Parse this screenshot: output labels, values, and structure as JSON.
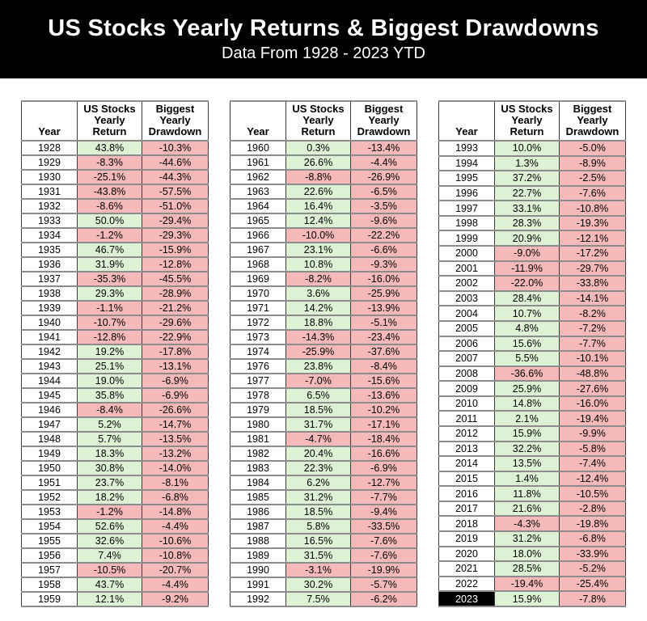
{
  "meta": {
    "title": "US Stocks Yearly Returns & Biggest Drawdowns",
    "subtitle": "Data From 1928 - 2023 YTD"
  },
  "colors": {
    "banner_bg": "#000000",
    "banner_text": "#ffffff",
    "positive_bg": "#ddf2d4",
    "negative_bg": "#f6b9ba",
    "highlight_year_bg": "#000000",
    "highlight_year_text": "#ffffff"
  },
  "chart_data": {
    "type": "table",
    "title": "US Stocks Yearly Returns & Biggest Drawdowns",
    "subtitle": "Data From 1928 - 2023 YTD",
    "columns": [
      "Year",
      "US Stocks Yearly Return",
      "Biggest Yearly Drawdown"
    ],
    "highlighted_year": "2023",
    "tables": [
      {
        "rows": [
          [
            "1928",
            "43.8%",
            "-10.3%"
          ],
          [
            "1929",
            "-8.3%",
            "-44.6%"
          ],
          [
            "1930",
            "-25.1%",
            "-44.3%"
          ],
          [
            "1931",
            "-43.8%",
            "-57.5%"
          ],
          [
            "1932",
            "-8.6%",
            "-51.0%"
          ],
          [
            "1933",
            "50.0%",
            "-29.4%"
          ],
          [
            "1934",
            "-1.2%",
            "-29.3%"
          ],
          [
            "1935",
            "46.7%",
            "-15.9%"
          ],
          [
            "1936",
            "31.9%",
            "-12.8%"
          ],
          [
            "1937",
            "-35.3%",
            "-45.5%"
          ],
          [
            "1938",
            "29.3%",
            "-28.9%"
          ],
          [
            "1939",
            "-1.1%",
            "-21.2%"
          ],
          [
            "1940",
            "-10.7%",
            "-29.6%"
          ],
          [
            "1941",
            "-12.8%",
            "-22.9%"
          ],
          [
            "1942",
            "19.2%",
            "-17.8%"
          ],
          [
            "1943",
            "25.1%",
            "-13.1%"
          ],
          [
            "1944",
            "19.0%",
            "-6.9%"
          ],
          [
            "1945",
            "35.8%",
            "-6.9%"
          ],
          [
            "1946",
            "-8.4%",
            "-26.6%"
          ],
          [
            "1947",
            "5.2%",
            "-14.7%"
          ],
          [
            "1948",
            "5.7%",
            "-13.5%"
          ],
          [
            "1949",
            "18.3%",
            "-13.2%"
          ],
          [
            "1950",
            "30.8%",
            "-14.0%"
          ],
          [
            "1951",
            "23.7%",
            "-8.1%"
          ],
          [
            "1952",
            "18.2%",
            "-6.8%"
          ],
          [
            "1953",
            "-1.2%",
            "-14.8%"
          ],
          [
            "1954",
            "52.6%",
            "-4.4%"
          ],
          [
            "1955",
            "32.6%",
            "-10.6%"
          ],
          [
            "1956",
            "7.4%",
            "-10.8%"
          ],
          [
            "1957",
            "-10.5%",
            "-20.7%"
          ],
          [
            "1958",
            "43.7%",
            "-4.4%"
          ],
          [
            "1959",
            "12.1%",
            "-9.2%"
          ]
        ]
      },
      {
        "rows": [
          [
            "1960",
            "0.3%",
            "-13.4%"
          ],
          [
            "1961",
            "26.6%",
            "-4.4%"
          ],
          [
            "1962",
            "-8.8%",
            "-26.9%"
          ],
          [
            "1963",
            "22.6%",
            "-6.5%"
          ],
          [
            "1964",
            "16.4%",
            "-3.5%"
          ],
          [
            "1965",
            "12.4%",
            "-9.6%"
          ],
          [
            "1966",
            "-10.0%",
            "-22.2%"
          ],
          [
            "1967",
            "23.1%",
            "-6.6%"
          ],
          [
            "1968",
            "10.8%",
            "-9.3%"
          ],
          [
            "1969",
            "-8.2%",
            "-16.0%"
          ],
          [
            "1970",
            "3.6%",
            "-25.9%"
          ],
          [
            "1971",
            "14.2%",
            "-13.9%"
          ],
          [
            "1972",
            "18.8%",
            "-5.1%"
          ],
          [
            "1973",
            "-14.3%",
            "-23.4%"
          ],
          [
            "1974",
            "-25.9%",
            "-37.6%"
          ],
          [
            "1976",
            "23.8%",
            "-8.4%"
          ],
          [
            "1977",
            "-7.0%",
            "-15.6%"
          ],
          [
            "1978",
            "6.5%",
            "-13.6%"
          ],
          [
            "1979",
            "18.5%",
            "-10.2%"
          ],
          [
            "1980",
            "31.7%",
            "-17.1%"
          ],
          [
            "1981",
            "-4.7%",
            "-18.4%"
          ],
          [
            "1982",
            "20.4%",
            "-16.6%"
          ],
          [
            "1983",
            "22.3%",
            "-6.9%"
          ],
          [
            "1984",
            "6.2%",
            "-12.7%"
          ],
          [
            "1985",
            "31.2%",
            "-7.7%"
          ],
          [
            "1986",
            "18.5%",
            "-9.4%"
          ],
          [
            "1987",
            "5.8%",
            "-33.5%"
          ],
          [
            "1988",
            "16.5%",
            "-7.6%"
          ],
          [
            "1989",
            "31.5%",
            "-7.6%"
          ],
          [
            "1990",
            "-3.1%",
            "-19.9%"
          ],
          [
            "1991",
            "30.2%",
            "-5.7%"
          ],
          [
            "1992",
            "7.5%",
            "-6.2%"
          ]
        ]
      },
      {
        "rows": [
          [
            "1993",
            "10.0%",
            "-5.0%"
          ],
          [
            "1994",
            "1.3%",
            "-8.9%"
          ],
          [
            "1995",
            "37.2%",
            "-2.5%"
          ],
          [
            "1996",
            "22.7%",
            "-7.6%"
          ],
          [
            "1997",
            "33.1%",
            "-10.8%"
          ],
          [
            "1998",
            "28.3%",
            "-19.3%"
          ],
          [
            "1999",
            "20.9%",
            "-12.1%"
          ],
          [
            "2000",
            "-9.0%",
            "-17.2%"
          ],
          [
            "2001",
            "-11.9%",
            "-29.7%"
          ],
          [
            "2002",
            "-22.0%",
            "-33.8%"
          ],
          [
            "2003",
            "28.4%",
            "-14.1%"
          ],
          [
            "2004",
            "10.7%",
            "-8.2%"
          ],
          [
            "2005",
            "4.8%",
            "-7.2%"
          ],
          [
            "2006",
            "15.6%",
            "-7.7%"
          ],
          [
            "2007",
            "5.5%",
            "-10.1%"
          ],
          [
            "2008",
            "-36.6%",
            "-48.8%"
          ],
          [
            "2009",
            "25.9%",
            "-27.6%"
          ],
          [
            "2010",
            "14.8%",
            "-16.0%"
          ],
          [
            "2011",
            "2.1%",
            "-19.4%"
          ],
          [
            "2012",
            "15.9%",
            "-9.9%"
          ],
          [
            "2013",
            "32.2%",
            "-5.8%"
          ],
          [
            "2014",
            "13.5%",
            "-7.4%"
          ],
          [
            "2015",
            "1.4%",
            "-12.4%"
          ],
          [
            "2016",
            "11.8%",
            "-10.5%"
          ],
          [
            "2017",
            "21.6%",
            "-2.8%"
          ],
          [
            "2018",
            "-4.3%",
            "-19.8%"
          ],
          [
            "2019",
            "31.2%",
            "-6.8%"
          ],
          [
            "2020",
            "18.0%",
            "-33.9%"
          ],
          [
            "2021",
            "28.5%",
            "-5.2%"
          ],
          [
            "2022",
            "-19.4%",
            "-25.4%"
          ],
          [
            "2023",
            "15.9%",
            "-7.8%"
          ]
        ]
      }
    ]
  }
}
